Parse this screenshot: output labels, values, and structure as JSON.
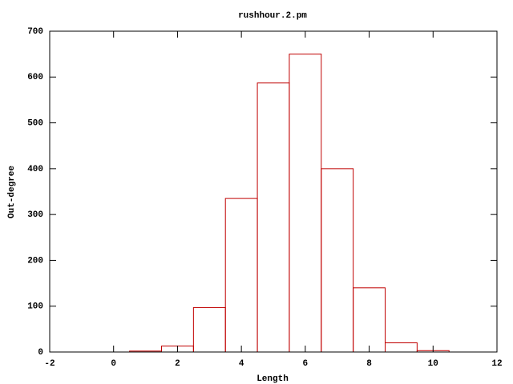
{
  "chart_data": {
    "type": "histogram",
    "title": "rushhour.2.pm",
    "x_label": "Length",
    "y_label": "Out-degree",
    "bins": [
      0.5,
      1.5,
      2.5,
      3.5,
      4.5,
      5.5,
      6.5,
      7.5,
      8.5,
      9.5,
      10.5
    ],
    "counts": [
      2,
      13,
      97,
      335,
      587,
      650,
      400,
      140,
      20,
      3
    ],
    "color": "#c00000",
    "xlim": [
      -2,
      12
    ],
    "xticks": [
      -2,
      0,
      2,
      4,
      6,
      8,
      10,
      12
    ],
    "ylim": [
      0,
      700
    ],
    "yticks": [
      0,
      100,
      200,
      300,
      400,
      500,
      600,
      700
    ],
    "grid": false
  }
}
